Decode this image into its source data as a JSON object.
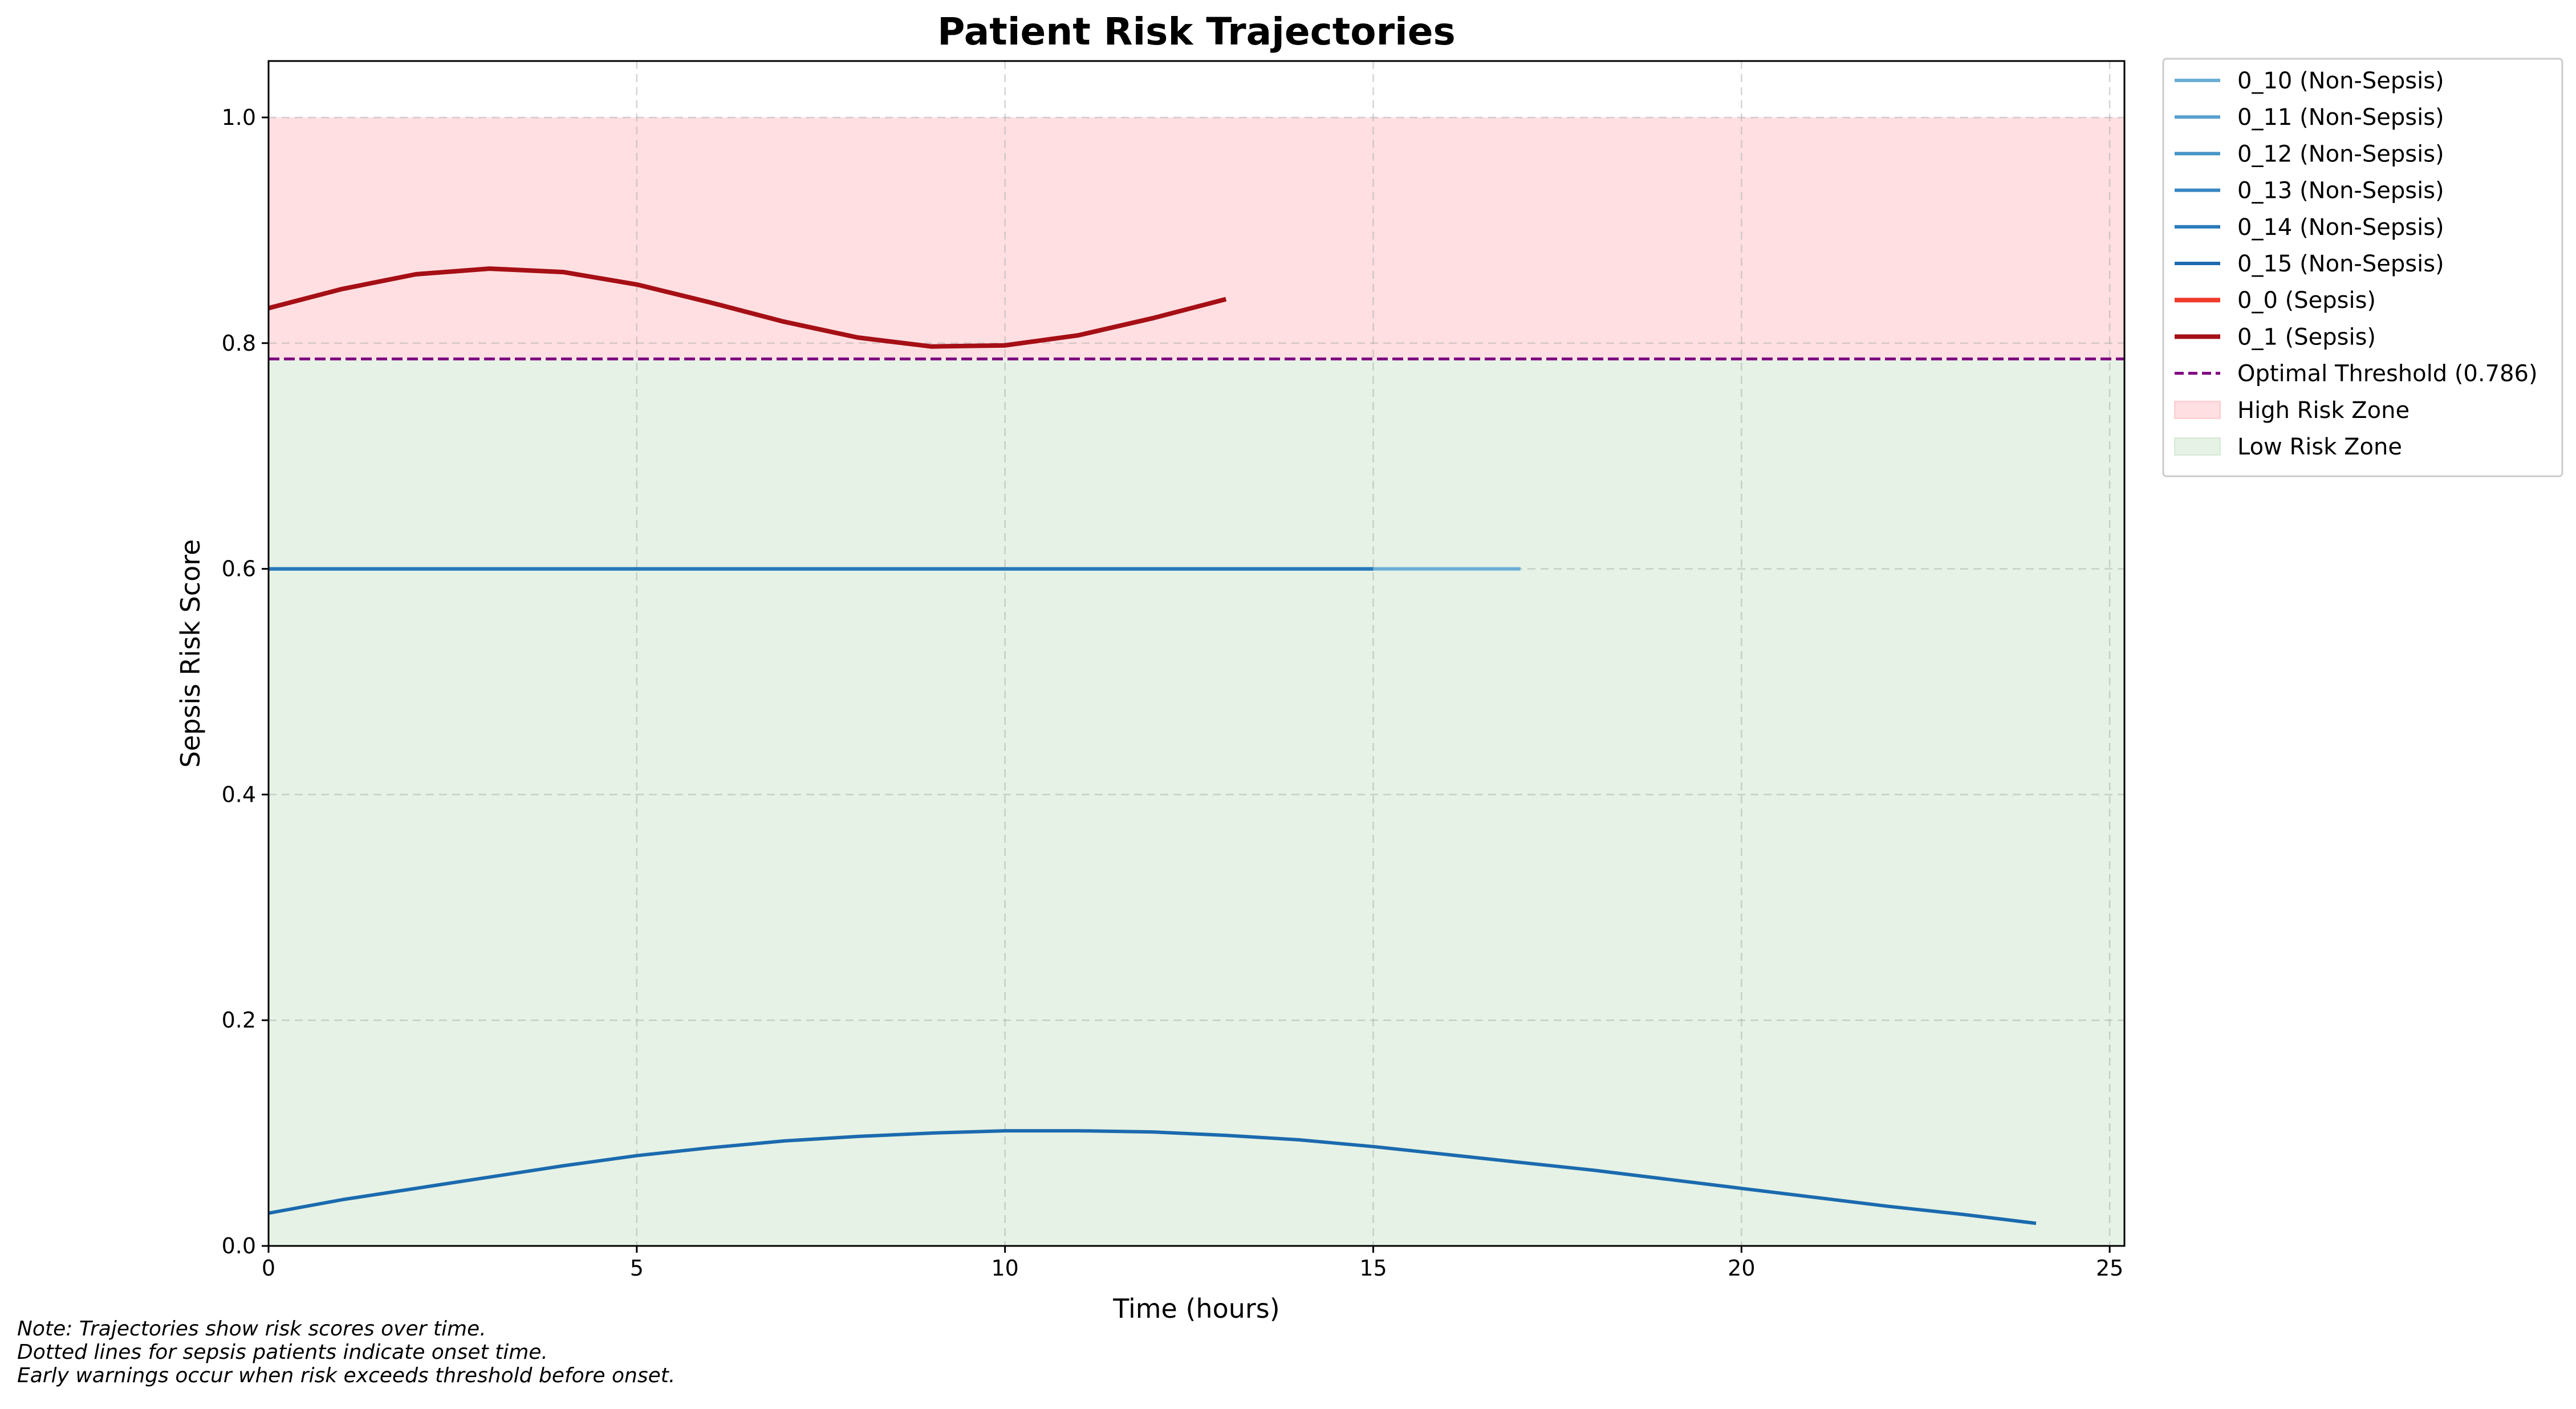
{
  "chart_data": {
    "type": "line",
    "title": "Patient Risk Trajectories",
    "xlabel": "Time (hours)",
    "ylabel": "Sepsis Risk Score",
    "xlim": [
      0,
      25.2
    ],
    "ylim": [
      0,
      1.05
    ],
    "xticks": [
      0,
      5,
      10,
      15,
      20,
      25
    ],
    "yticks": [
      0.0,
      0.2,
      0.4,
      0.6,
      0.8,
      1.0
    ],
    "xtick_labels": [
      "0",
      "5",
      "10",
      "15",
      "20",
      "25"
    ],
    "ytick_labels": [
      "0.0",
      "0.2",
      "0.4",
      "0.6",
      "0.8",
      "1.0"
    ],
    "grid": true,
    "legend_position": "outside-top-right",
    "threshold": {
      "value": 0.786,
      "name": "Optimal Threshold (0.786)",
      "color": "#800080"
    },
    "zones": [
      {
        "name": "High Risk Zone",
        "y0": 0.786,
        "y1": 1.0,
        "color": "#ffb3b8"
      },
      {
        "name": "Low Risk Zone",
        "y0": 0.0,
        "y1": 0.786,
        "color": "#c2dfc0"
      }
    ],
    "series": [
      {
        "name": "0_10 (Non-Sepsis)",
        "color": "#6aaed6",
        "x": [
          0,
          1,
          2,
          3,
          4,
          5,
          6,
          7,
          8,
          9,
          10,
          11,
          12,
          13,
          14,
          15,
          16,
          17
        ],
        "y": [
          0.6,
          0.6,
          0.6,
          0.6,
          0.6,
          0.6,
          0.6,
          0.6,
          0.6,
          0.6,
          0.6,
          0.6,
          0.6,
          0.6,
          0.6,
          0.6,
          0.6,
          0.6
        ]
      },
      {
        "name": "0_11 (Non-Sepsis)",
        "color": "#58a1cf",
        "x": [
          0,
          1,
          2,
          3,
          4,
          5,
          6,
          7,
          8,
          9,
          10,
          11,
          12,
          13,
          14,
          15
        ],
        "y": [
          0.6,
          0.6,
          0.6,
          0.6,
          0.6,
          0.6,
          0.6,
          0.6,
          0.6,
          0.6,
          0.6,
          0.6,
          0.6,
          0.6,
          0.6,
          0.6
        ]
      },
      {
        "name": "0_12 (Non-Sepsis)",
        "color": "#4594c7",
        "x": [
          0,
          1,
          2,
          3,
          4,
          5,
          6,
          7,
          8,
          9,
          10,
          11,
          12,
          13,
          14,
          15
        ],
        "y": [
          0.6,
          0.6,
          0.6,
          0.6,
          0.6,
          0.6,
          0.6,
          0.6,
          0.6,
          0.6,
          0.6,
          0.6,
          0.6,
          0.6,
          0.6,
          0.6
        ]
      },
      {
        "name": "0_13 (Non-Sepsis)",
        "color": "#3787c0",
        "x": [
          0,
          1,
          2,
          3,
          4,
          5,
          6,
          7,
          8,
          9,
          10,
          11,
          12,
          13,
          14,
          15
        ],
        "y": [
          0.6,
          0.6,
          0.6,
          0.6,
          0.6,
          0.6,
          0.6,
          0.6,
          0.6,
          0.6,
          0.6,
          0.6,
          0.6,
          0.6,
          0.6,
          0.6
        ]
      },
      {
        "name": "0_14 (Non-Sepsis)",
        "color": "#2979b9",
        "x": [
          0,
          1,
          2,
          3,
          4,
          5,
          6,
          7,
          8,
          9,
          10,
          11,
          12,
          13,
          14,
          15
        ],
        "y": [
          0.6,
          0.6,
          0.6,
          0.6,
          0.6,
          0.6,
          0.6,
          0.6,
          0.6,
          0.6,
          0.6,
          0.6,
          0.6,
          0.6,
          0.6,
          0.6
        ]
      },
      {
        "name": "0_15 (Non-Sepsis)",
        "color": "#1b6aaf",
        "x": [
          0,
          1,
          2,
          3,
          4,
          5,
          6,
          7,
          8,
          9,
          10,
          11,
          12,
          13,
          14,
          15,
          16,
          17,
          18,
          19,
          20,
          21,
          22,
          23,
          24
        ],
        "y": [
          0.029,
          0.041,
          0.051,
          0.061,
          0.071,
          0.08,
          0.087,
          0.093,
          0.097,
          0.1,
          0.102,
          0.102,
          0.101,
          0.098,
          0.094,
          0.088,
          0.081,
          0.074,
          0.067,
          0.059,
          0.051,
          0.043,
          0.035,
          0.028,
          0.02
        ]
      },
      {
        "name": "0_0 (Sepsis)",
        "color": "#ef3b2c",
        "x": [],
        "y": []
      },
      {
        "name": "0_1 (Sepsis)",
        "color": "#a50f15",
        "x": [
          0,
          1,
          2,
          3,
          4,
          5,
          6,
          7,
          8,
          9,
          10,
          11,
          12,
          13
        ],
        "y": [
          0.831,
          0.848,
          0.861,
          0.866,
          0.863,
          0.852,
          0.836,
          0.819,
          0.805,
          0.797,
          0.798,
          0.807,
          0.822,
          0.839
        ]
      }
    ],
    "notes": [
      "Note: Trajectories show risk scores over time.",
      "Dotted lines for sepsis patients indicate onset time.",
      "Early warnings occur when risk exceeds threshold before onset."
    ]
  }
}
